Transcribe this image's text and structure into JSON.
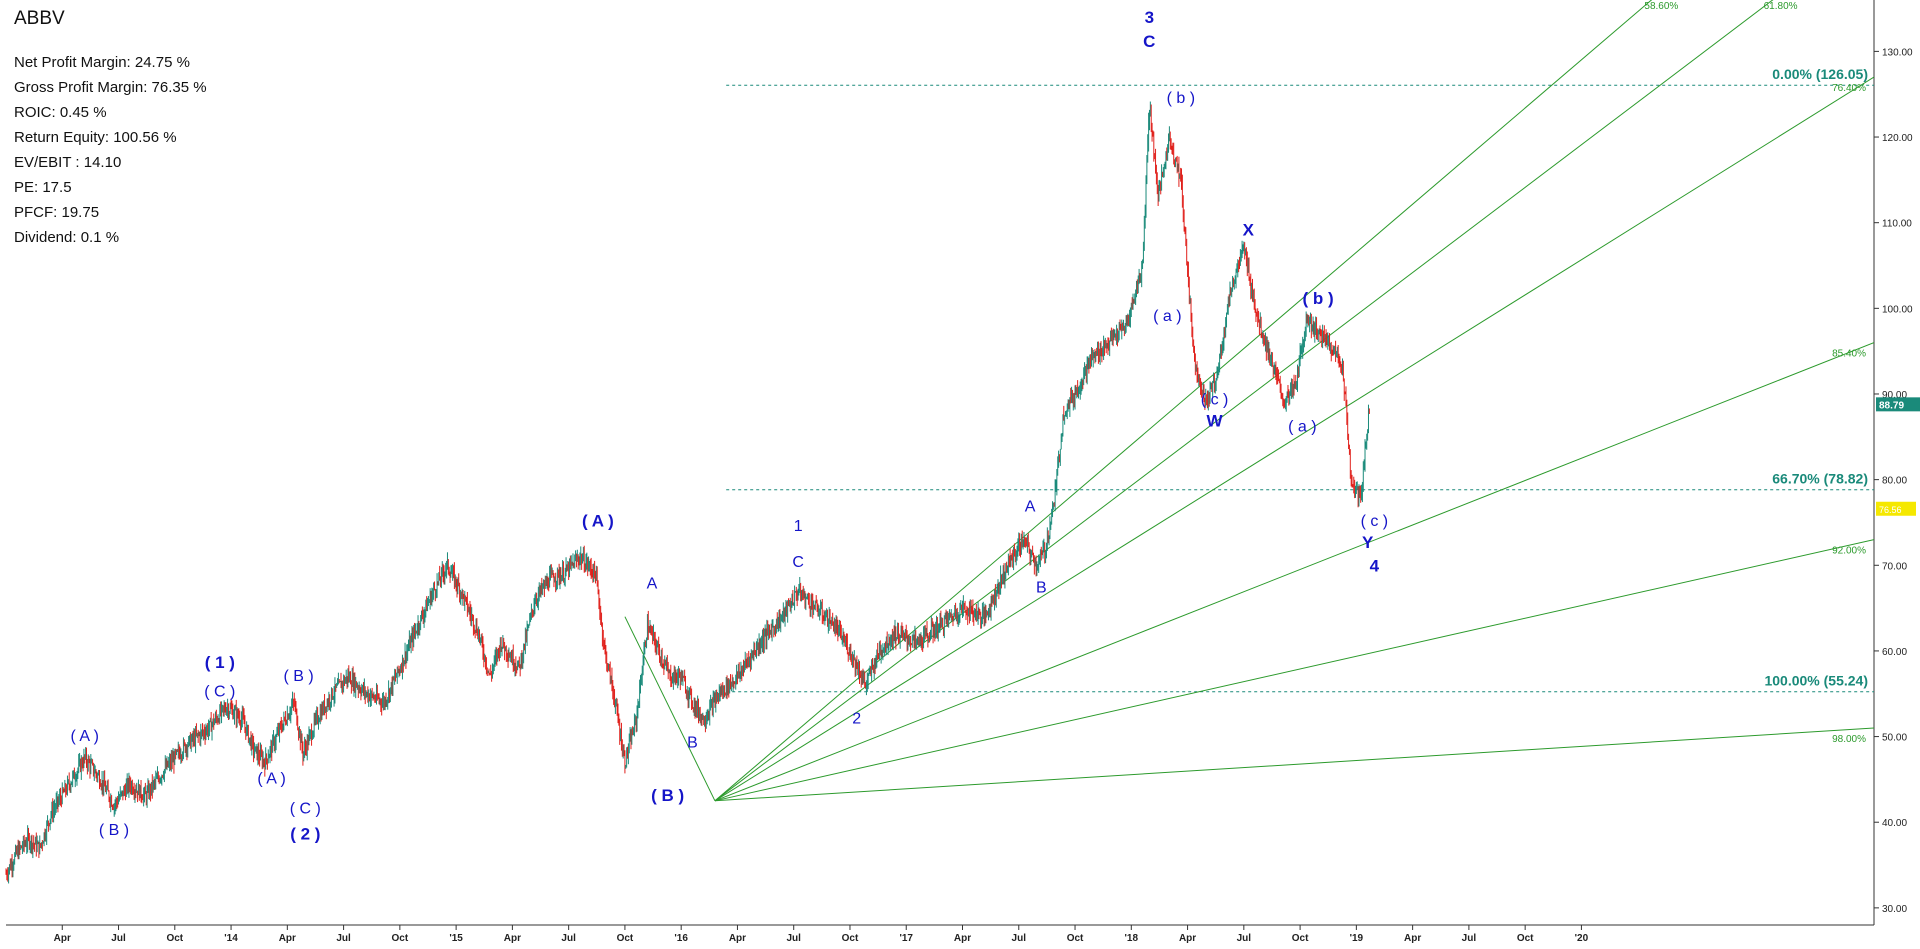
{
  "ticker": "ABBV",
  "metrics": [
    {
      "label": "Net Profit Margin",
      "value": "24.75 %"
    },
    {
      "label": "Gross Profit Margin",
      "value": "76.35 %"
    },
    {
      "label": "ROIC",
      "value": "0.45 %"
    },
    {
      "label": "Return Equity",
      "value": "100.56 %"
    },
    {
      "label": "EV/EBIT ",
      "value": "14.10"
    },
    {
      "label": "PE",
      "value": "17.5"
    },
    {
      "label": "PFCF",
      "value": "19.75"
    },
    {
      "label": "Dividend",
      "value": "0.1 %"
    }
  ],
  "chart_data": {
    "type": "line",
    "ylim": [
      28,
      136
    ],
    "y_ticks": [
      30,
      40,
      50,
      60,
      70,
      80,
      90,
      100,
      110,
      120,
      130
    ],
    "y_tick_labels": [
      "30.00",
      "40.00",
      "50.00",
      "60.00",
      "70.00",
      "80.00",
      "90.00",
      "100.00",
      "110.00",
      "120.00",
      "130.00"
    ],
    "xlim": [
      2013.0,
      2021.3
    ],
    "x_ticks": [
      {
        "t": 2013.25,
        "label": "Apr"
      },
      {
        "t": 2013.5,
        "label": "Jul"
      },
      {
        "t": 2013.75,
        "label": "Oct"
      },
      {
        "t": 2014.0,
        "label": "'14"
      },
      {
        "t": 2014.25,
        "label": "Apr"
      },
      {
        "t": 2014.5,
        "label": "Jul"
      },
      {
        "t": 2014.75,
        "label": "Oct"
      },
      {
        "t": 2015.0,
        "label": "'15"
      },
      {
        "t": 2015.25,
        "label": "Apr"
      },
      {
        "t": 2015.5,
        "label": "Jul"
      },
      {
        "t": 2015.75,
        "label": "Oct"
      },
      {
        "t": 2016.0,
        "label": "'16"
      },
      {
        "t": 2016.25,
        "label": "Apr"
      },
      {
        "t": 2016.5,
        "label": "Jul"
      },
      {
        "t": 2016.75,
        "label": "Oct"
      },
      {
        "t": 2017.0,
        "label": "'17"
      },
      {
        "t": 2017.25,
        "label": "Apr"
      },
      {
        "t": 2017.5,
        "label": "Jul"
      },
      {
        "t": 2017.75,
        "label": "Oct"
      },
      {
        "t": 2018.0,
        "label": "'18"
      },
      {
        "t": 2018.25,
        "label": "Apr"
      },
      {
        "t": 2018.5,
        "label": "Jul"
      },
      {
        "t": 2018.75,
        "label": "Oct"
      },
      {
        "t": 2019.0,
        "label": "'19"
      },
      {
        "t": 2019.25,
        "label": "Apr"
      },
      {
        "t": 2019.5,
        "label": "Jul"
      },
      {
        "t": 2019.75,
        "label": "Oct"
      },
      {
        "t": 2020.0,
        "label": "'20"
      }
    ],
    "price_series": {
      "name": "ABBV",
      "points": [
        [
          2013.0,
          34
        ],
        [
          2013.05,
          36.5
        ],
        [
          2013.1,
          38
        ],
        [
          2013.15,
          37
        ],
        [
          2013.2,
          41
        ],
        [
          2013.27,
          44
        ],
        [
          2013.35,
          47.5
        ],
        [
          2013.42,
          45
        ],
        [
          2013.48,
          42
        ],
        [
          2013.55,
          44.5
        ],
        [
          2013.62,
          43
        ],
        [
          2013.7,
          46
        ],
        [
          2013.8,
          49
        ],
        [
          2013.9,
          51
        ],
        [
          2013.98,
          53.5
        ],
        [
          2014.05,
          52
        ],
        [
          2014.1,
          48.5
        ],
        [
          2014.15,
          47
        ],
        [
          2014.22,
          51
        ],
        [
          2014.28,
          54
        ],
        [
          2014.32,
          48
        ],
        [
          2014.38,
          52
        ],
        [
          2014.45,
          55
        ],
        [
          2014.52,
          57
        ],
        [
          2014.6,
          55
        ],
        [
          2014.68,
          54
        ],
        [
          2014.75,
          58
        ],
        [
          2014.83,
          63
        ],
        [
          2014.9,
          67
        ],
        [
          2014.96,
          70
        ],
        [
          2015.02,
          67
        ],
        [
          2015.1,
          62
        ],
        [
          2015.15,
          57
        ],
        [
          2015.2,
          61
        ],
        [
          2015.28,
          58
        ],
        [
          2015.35,
          66
        ],
        [
          2015.42,
          68.5
        ],
        [
          2015.48,
          69
        ],
        [
          2015.55,
          71
        ],
        [
          2015.62,
          69
        ],
        [
          2015.66,
          60
        ],
        [
          2015.7,
          55
        ],
        [
          2015.75,
          47
        ],
        [
          2015.8,
          52
        ],
        [
          2015.85,
          63
        ],
        [
          2015.9,
          60
        ],
        [
          2015.95,
          57
        ],
        [
          2016.0,
          57
        ],
        [
          2016.05,
          54
        ],
        [
          2016.1,
          52
        ],
        [
          2016.17,
          55
        ],
        [
          2016.25,
          57
        ],
        [
          2016.35,
          61
        ],
        [
          2016.45,
          64
        ],
        [
          2016.52,
          67
        ],
        [
          2016.6,
          65
        ],
        [
          2016.68,
          63
        ],
        [
          2016.75,
          60
        ],
        [
          2016.82,
          56
        ],
        [
          2016.88,
          60
        ],
        [
          2016.95,
          62
        ],
        [
          2017.05,
          61
        ],
        [
          2017.15,
          63
        ],
        [
          2017.25,
          65
        ],
        [
          2017.35,
          64
        ],
        [
          2017.45,
          70
        ],
        [
          2017.52,
          73
        ],
        [
          2017.58,
          70
        ],
        [
          2017.62,
          72
        ],
        [
          2017.66,
          78
        ],
        [
          2017.7,
          88
        ],
        [
          2017.75,
          90
        ],
        [
          2017.82,
          94
        ],
        [
          2017.9,
          96
        ],
        [
          2017.98,
          98
        ],
        [
          2018.05,
          105
        ],
        [
          2018.08,
          124
        ],
        [
          2018.12,
          113
        ],
        [
          2018.17,
          120
        ],
        [
          2018.22,
          115
        ],
        [
          2018.28,
          94
        ],
        [
          2018.33,
          89
        ],
        [
          2018.38,
          92
        ],
        [
          2018.44,
          102
        ],
        [
          2018.5,
          107
        ],
        [
          2018.56,
          99
        ],
        [
          2018.62,
          94
        ],
        [
          2018.68,
          89
        ],
        [
          2018.73,
          91
        ],
        [
          2018.78,
          99
        ],
        [
          2018.83,
          97
        ],
        [
          2018.88,
          96
        ],
        [
          2018.94,
          93
        ],
        [
          2018.98,
          79
        ],
        [
          2019.02,
          78
        ],
        [
          2019.06,
          89
        ]
      ]
    },
    "fib_levels": [
      {
        "value": 126.05,
        "label": "0.00% (126.05)"
      },
      {
        "value": 78.82,
        "label": "66.70% (78.82)"
      },
      {
        "value": 55.24,
        "label": "100.00% (55.24)"
      }
    ],
    "fan_origin": [
      2016.15,
      42.5
    ],
    "fan_rays": [
      {
        "end": [
          2020.4,
          138
        ],
        "label": "58.60%"
      },
      {
        "end": [
          2020.95,
          138
        ],
        "label": "61.80%"
      },
      {
        "end": [
          2021.3,
          127
        ],
        "label": "76.40%"
      },
      {
        "end": [
          2021.3,
          96
        ],
        "label": "85.40%"
      },
      {
        "end": [
          2021.3,
          73
        ],
        "label": "92.00%"
      },
      {
        "end": [
          2021.3,
          51
        ],
        "label": "98.00%"
      }
    ],
    "second_fan_end": [
      2015.75,
      64
    ],
    "wave_labels": [
      {
        "t": 2013.35,
        "v": 49.5,
        "text": "( A )"
      },
      {
        "t": 2013.48,
        "v": 38.5,
        "text": "( B )"
      },
      {
        "t": 2013.95,
        "v": 54.7,
        "text": "( C )"
      },
      {
        "t": 2013.95,
        "v": 58,
        "text": "( 1 )",
        "bold": true
      },
      {
        "t": 2014.18,
        "v": 44.5,
        "text": "( A )"
      },
      {
        "t": 2014.3,
        "v": 56.5,
        "text": "( B )"
      },
      {
        "t": 2014.33,
        "v": 41,
        "text": "( C )"
      },
      {
        "t": 2014.33,
        "v": 38,
        "text": "( 2 )",
        "bold": true
      },
      {
        "t": 2015.63,
        "v": 74.5,
        "text": "( A )",
        "bold": true
      },
      {
        "t": 2015.87,
        "v": 67.3,
        "text": "A"
      },
      {
        "t": 2015.94,
        "v": 42.5,
        "text": "( B )",
        "bold": true
      },
      {
        "t": 2016.05,
        "v": 48.7,
        "text": "B"
      },
      {
        "t": 2016.52,
        "v": 74,
        "text": "1"
      },
      {
        "t": 2016.52,
        "v": 69.8,
        "text": "C"
      },
      {
        "t": 2016.78,
        "v": 51.5,
        "text": "2"
      },
      {
        "t": 2017.55,
        "v": 76.3,
        "text": "A"
      },
      {
        "t": 2017.6,
        "v": 66.8,
        "text": "B"
      },
      {
        "t": 2018.08,
        "v": 133.3,
        "text": "3",
        "bold": true
      },
      {
        "t": 2018.08,
        "v": 130.5,
        "text": "C",
        "bold": true
      },
      {
        "t": 2018.22,
        "v": 124,
        "text": "( b )"
      },
      {
        "t": 2018.16,
        "v": 98.5,
        "text": "( a )"
      },
      {
        "t": 2018.52,
        "v": 108.5,
        "text": "X",
        "bold": true
      },
      {
        "t": 2018.37,
        "v": 88.8,
        "text": "( c )"
      },
      {
        "t": 2018.37,
        "v": 86.2,
        "text": "W",
        "bold": true
      },
      {
        "t": 2018.83,
        "v": 100.5,
        "text": "( b )",
        "bold": true
      },
      {
        "t": 2018.76,
        "v": 85.6,
        "text": "( a )"
      },
      {
        "t": 2019.08,
        "v": 74.6,
        "text": "( c )"
      },
      {
        "t": 2019.05,
        "v": 72,
        "text": "Y",
        "bold": true
      },
      {
        "t": 2019.08,
        "v": 69.3,
        "text": "4",
        "bold": true
      }
    ],
    "last_price": {
      "value": 88.79,
      "label": "88.79"
    },
    "marker_76": {
      "value": 76.6,
      "label": "76.56"
    },
    "colors": {
      "up": "#1a8a7a",
      "down": "#e0201b",
      "fan": "#2c9a2c",
      "fib": "#1a8a7a",
      "wave": "#1515c8",
      "badge": "#1a8a7a",
      "badge2": "#f5e800"
    }
  }
}
